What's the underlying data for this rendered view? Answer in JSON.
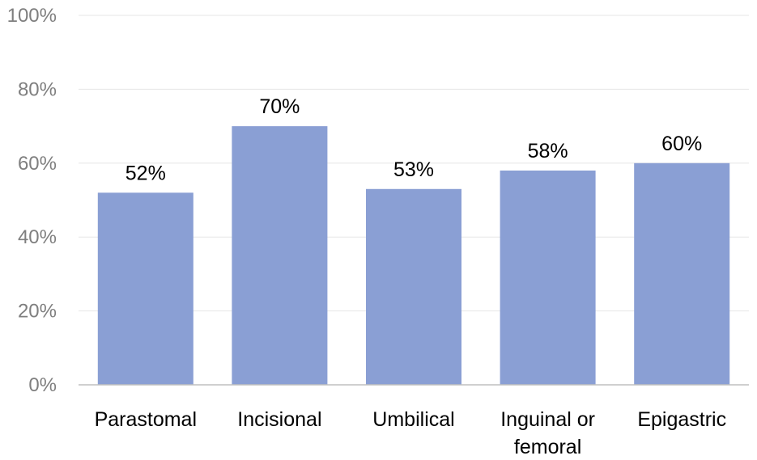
{
  "chart_data": {
    "type": "bar",
    "categories": [
      [
        "Parastomal"
      ],
      [
        "Incisional"
      ],
      [
        "Umbilical"
      ],
      [
        "Inguinal or",
        "femoral"
      ],
      [
        "Epigastric"
      ]
    ],
    "values": [
      52,
      70,
      53,
      58,
      60
    ],
    "data_labels": [
      "52%",
      "70%",
      "53%",
      "58%",
      "60%"
    ],
    "y_ticks": [
      {
        "value": 0,
        "label": "0%"
      },
      {
        "value": 20,
        "label": "20%"
      },
      {
        "value": 40,
        "label": "40%"
      },
      {
        "value": 60,
        "label": "60%"
      },
      {
        "value": 80,
        "label": "80%"
      },
      {
        "value": 100,
        "label": "100%"
      }
    ],
    "ylim": [
      0,
      100
    ],
    "grid": true,
    "legend": "none",
    "title": "",
    "xlabel": "",
    "ylabel": "",
    "colors": {
      "bar": "#8a9fd4",
      "grid": "#e6e6e6",
      "axis": "#bfbfbf",
      "tick_text": "#7f7f7f",
      "label_text": "#000000"
    }
  }
}
